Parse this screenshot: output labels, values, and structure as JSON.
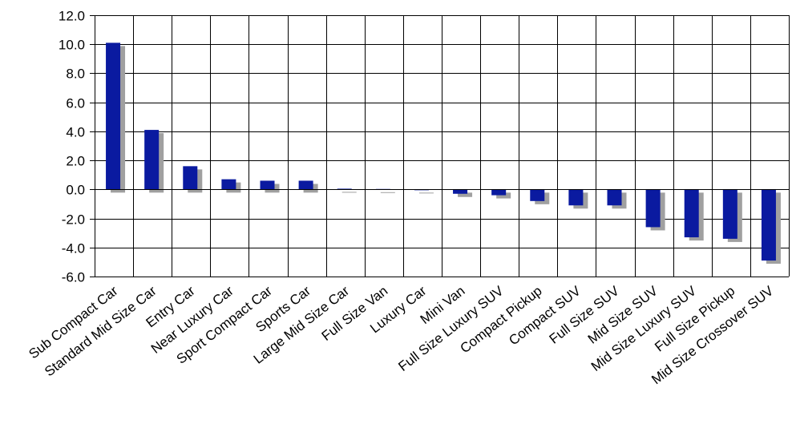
{
  "chart_data": {
    "type": "bar",
    "title": "",
    "xlabel": "",
    "ylabel": "",
    "categories": [
      "Sub Compact Car",
      "Standard Mid Size Car",
      "Entry Car",
      "Near Luxury Car",
      "Sport Compact Car",
      "Sports Car",
      "Large Mid Size Car",
      "Full Size Van",
      "Luxury Car",
      "Mini Van",
      "Full Size Luxury SUV",
      "Compact Pickup",
      "Compact SUV",
      "Full Size SUV",
      "Mid Size SUV",
      "Mid Size Luxury SUV",
      "Full Size Pickup",
      "Mid Size Crossover SUV"
    ],
    "values": [
      10.1,
      4.1,
      1.6,
      0.7,
      0.6,
      0.6,
      0.05,
      0.03,
      0.0,
      -0.3,
      -0.4,
      -0.8,
      -1.1,
      -1.1,
      -2.6,
      -3.3,
      -3.4,
      -4.9
    ],
    "ylim": [
      -6.0,
      12.0
    ],
    "yticks": [
      "12.0",
      "10.0",
      "8.0",
      "6.0",
      "4.0",
      "2.0",
      "0.0",
      "-2.0",
      "-4.0",
      "-6.0"
    ],
    "ytick_values": [
      12,
      10,
      8,
      6,
      4,
      2,
      0,
      -2,
      -4,
      -6
    ],
    "grid": true,
    "legend": "none",
    "bar_color": "#0a1aa0",
    "shadow_color": "#a0a0a0",
    "grid_color": "#000000"
  }
}
